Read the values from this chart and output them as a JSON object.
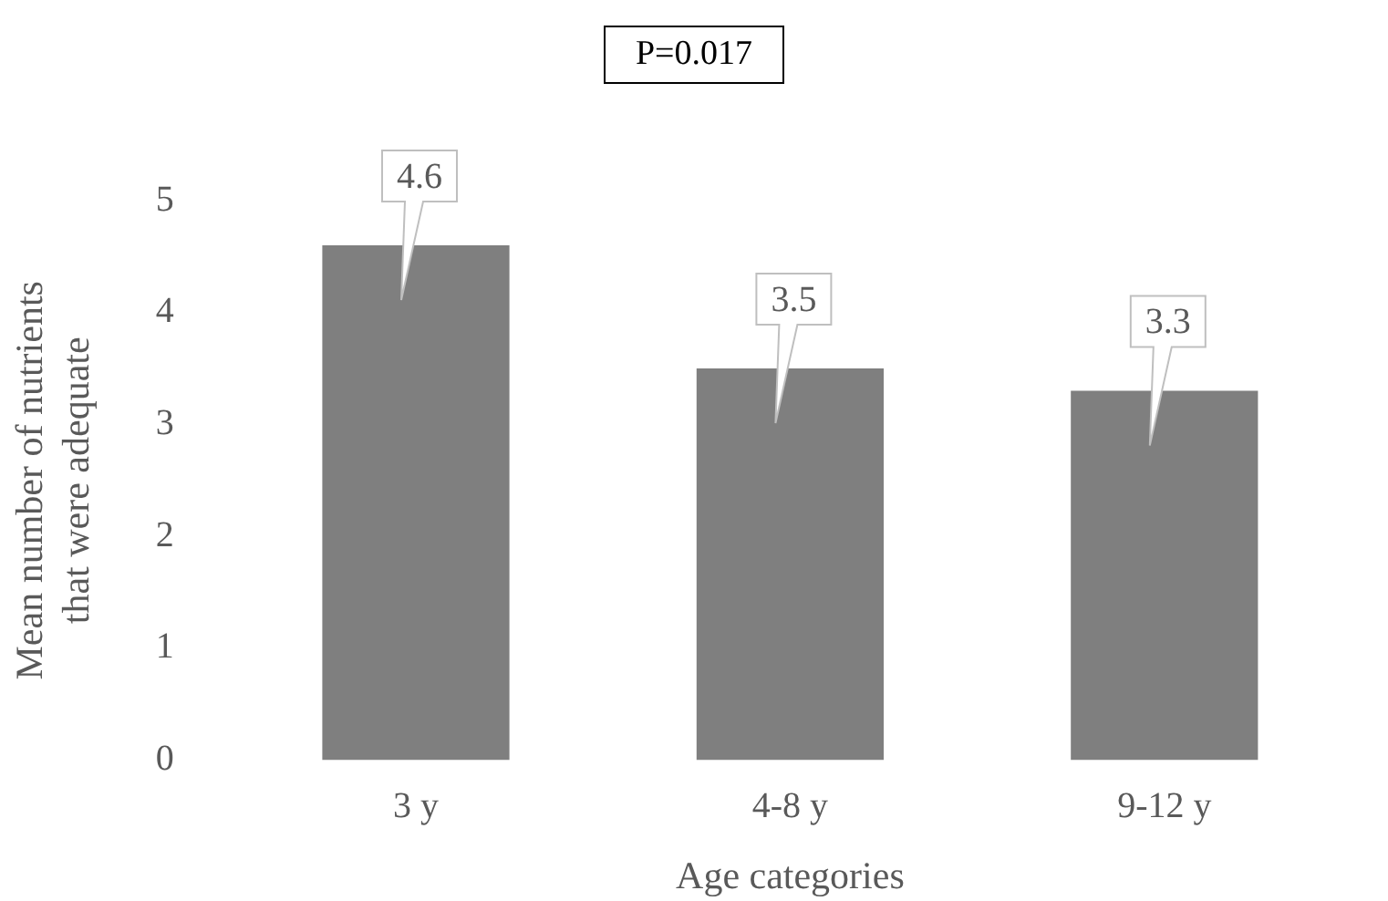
{
  "chart_data": {
    "type": "bar",
    "title": "P=0.017",
    "xlabel": "Age categories",
    "ylabel": "Mean number of nutrients that were adequate",
    "categories": [
      "3 y",
      "4-8 y",
      "9-12 y"
    ],
    "values": [
      4.6,
      3.5,
      3.3
    ],
    "color": "#7f7f7f",
    "ylim": [
      0,
      5
    ],
    "yticks": [
      0,
      1,
      2,
      3,
      4,
      5
    ],
    "grid": false,
    "legend": false,
    "data_labels": true
  }
}
